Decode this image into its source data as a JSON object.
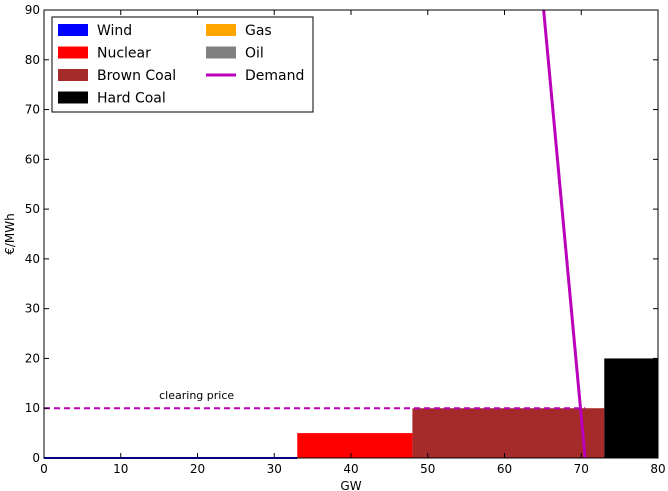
{
  "chart_data": {
    "type": "step",
    "xlabel": "GW",
    "ylabel": "€/MWh",
    "xlim": [
      0,
      80
    ],
    "ylim": [
      0,
      90
    ],
    "xticks": [
      0,
      10,
      20,
      30,
      40,
      50,
      60,
      70,
      80
    ],
    "yticks": [
      0,
      10,
      20,
      30,
      40,
      50,
      60,
      70,
      80,
      90
    ],
    "grid": false,
    "legend_position": "top-left",
    "supply_blocks": [
      {
        "name": "Wind",
        "color": "#0000ff",
        "x_start": 0,
        "x_end": 33,
        "price": 0
      },
      {
        "name": "Nuclear",
        "color": "#ff0000",
        "x_start": 33,
        "x_end": 48,
        "price": 5
      },
      {
        "name": "Brown Coal",
        "color": "#a52a2a",
        "x_start": 48,
        "x_end": 73,
        "price": 10
      },
      {
        "name": "Hard Coal",
        "color": "#000000",
        "x_start": 73,
        "x_end": 80,
        "price": 20
      },
      {
        "name": "Gas",
        "color": "#ffa500",
        "x_start": 80,
        "x_end": 80,
        "price": 20
      },
      {
        "name": "Oil",
        "color": "#808080",
        "x_start": 80,
        "x_end": 80,
        "price": 20
      }
    ],
    "demand": {
      "name": "Demand",
      "color": "#bb00bb",
      "points": [
        [
          65.1,
          90
        ],
        [
          70.5,
          0
        ]
      ]
    },
    "clearing_price": {
      "label": "clearing price",
      "value": 10,
      "x_end": 70.5,
      "color": "#bb00bb"
    },
    "legend": [
      {
        "label": "Wind",
        "color": "#0000ff",
        "kind": "patch"
      },
      {
        "label": "Nuclear",
        "color": "#ff0000",
        "kind": "patch"
      },
      {
        "label": "Brown Coal",
        "color": "#a52a2a",
        "kind": "patch"
      },
      {
        "label": "Hard Coal",
        "color": "#000000",
        "kind": "patch"
      },
      {
        "label": "Gas",
        "color": "#ffa500",
        "kind": "patch"
      },
      {
        "label": "Oil",
        "color": "#808080",
        "kind": "patch"
      },
      {
        "label": "Demand",
        "color": "#bb00bb",
        "kind": "line"
      }
    ]
  }
}
